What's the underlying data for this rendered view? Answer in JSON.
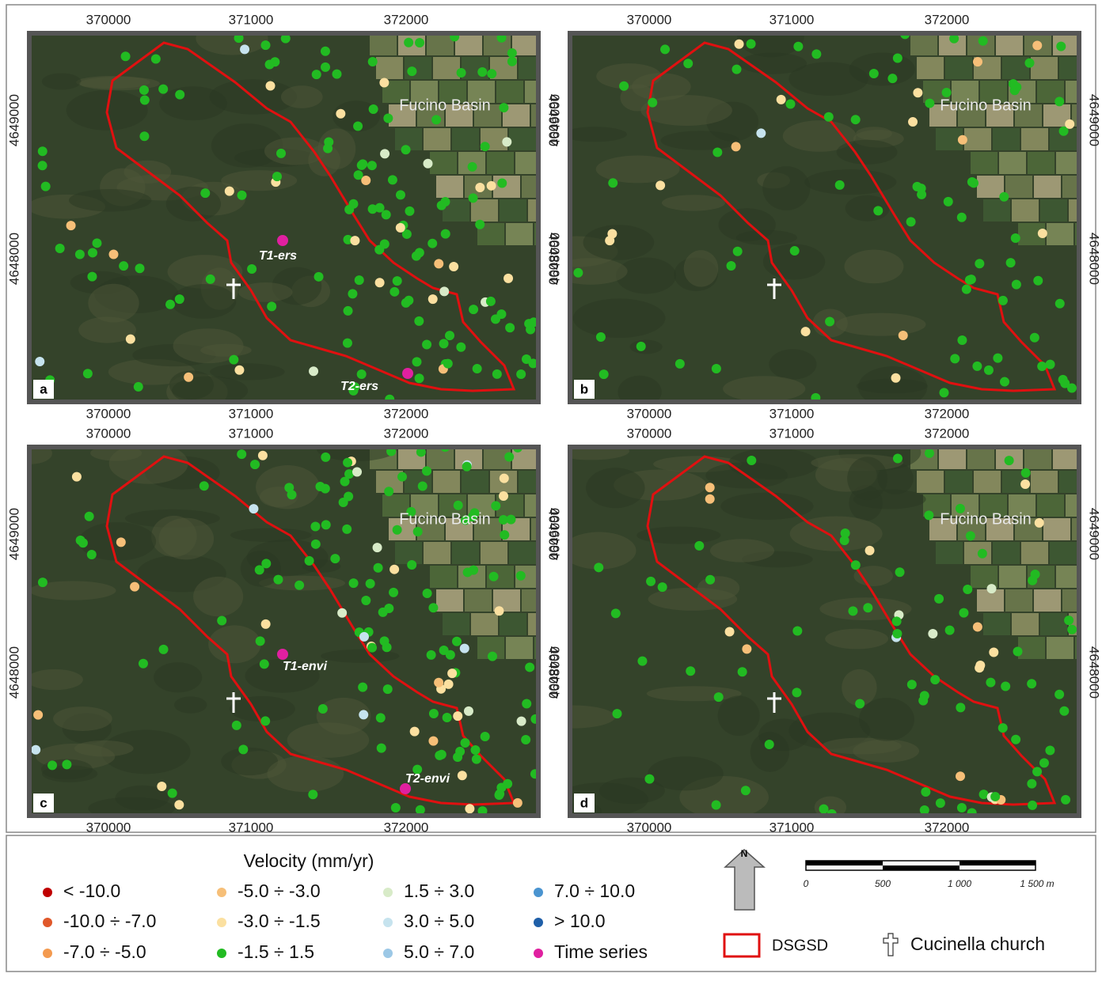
{
  "panels": [
    {
      "letter": "a",
      "place": "Fucino Basin",
      "annotations": [
        "T1-ers",
        "T2-ers"
      ]
    },
    {
      "letter": "b",
      "place": "Fucino Basin",
      "annotations": []
    },
    {
      "letter": "c",
      "place": "Fucino Basin",
      "annotations": [
        "T1-envi",
        "T2-envi"
      ]
    },
    {
      "letter": "d",
      "place": "Fucino Basin",
      "annotations": []
    }
  ],
  "x_ticks": [
    "370000",
    "371000",
    "372000"
  ],
  "y_ticks": [
    "4649000",
    "4648000"
  ],
  "legend": {
    "title": "Velocity (mm/yr)",
    "classes": [
      {
        "label": "< -10.0",
        "color": "#c00000"
      },
      {
        "label": "-10.0 ÷ -7.0",
        "color": "#e0582a"
      },
      {
        "label": "-7.0 ÷ -5.0",
        "color": "#f39a4f"
      },
      {
        "label": "-5.0 ÷ -3.0",
        "color": "#f6bf78"
      },
      {
        "label": "-3.0 ÷ -1.5",
        "color": "#fbe0a0"
      },
      {
        "label": "-1.5 ÷ 1.5",
        "color": "#22bb22"
      },
      {
        "label": "1.5 ÷ 3.0",
        "color": "#d8ebc8"
      },
      {
        "label": "3.0 ÷ 5.0",
        "color": "#c6e3ee"
      },
      {
        "label": "5.0 ÷ 7.0",
        "color": "#9cc8e6"
      },
      {
        "label": "7.0 ÷ 10.0",
        "color": "#4a94d0"
      },
      {
        "label": "> 10.0",
        "color": "#1f5fa8"
      },
      {
        "label": "Time series",
        "color": "#e020a0"
      }
    ],
    "north": "N",
    "scale_labels": [
      "0",
      "500",
      "1 000",
      "1 500 m"
    ],
    "boundary": "DSGSD",
    "church": "Cucinella church"
  }
}
